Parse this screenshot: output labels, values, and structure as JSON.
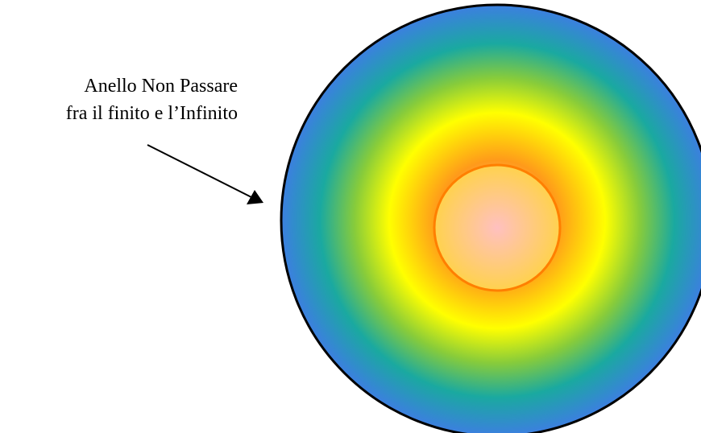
{
  "annotation": {
    "line1": "Anello Non Passare",
    "line2": "fra il finito e l’Infinito"
  },
  "colors": {
    "outline": "#000000",
    "inner_outline": "#ff7f00",
    "center": "#ffc0c0",
    "inner_fill": "#ffd24d",
    "orange": "#ff9a1a",
    "yellow": "#ffff00",
    "green": "#88cc3a",
    "teal": "#1aa9a0",
    "blue": "#3c7fe0",
    "arrow": "#000000"
  }
}
